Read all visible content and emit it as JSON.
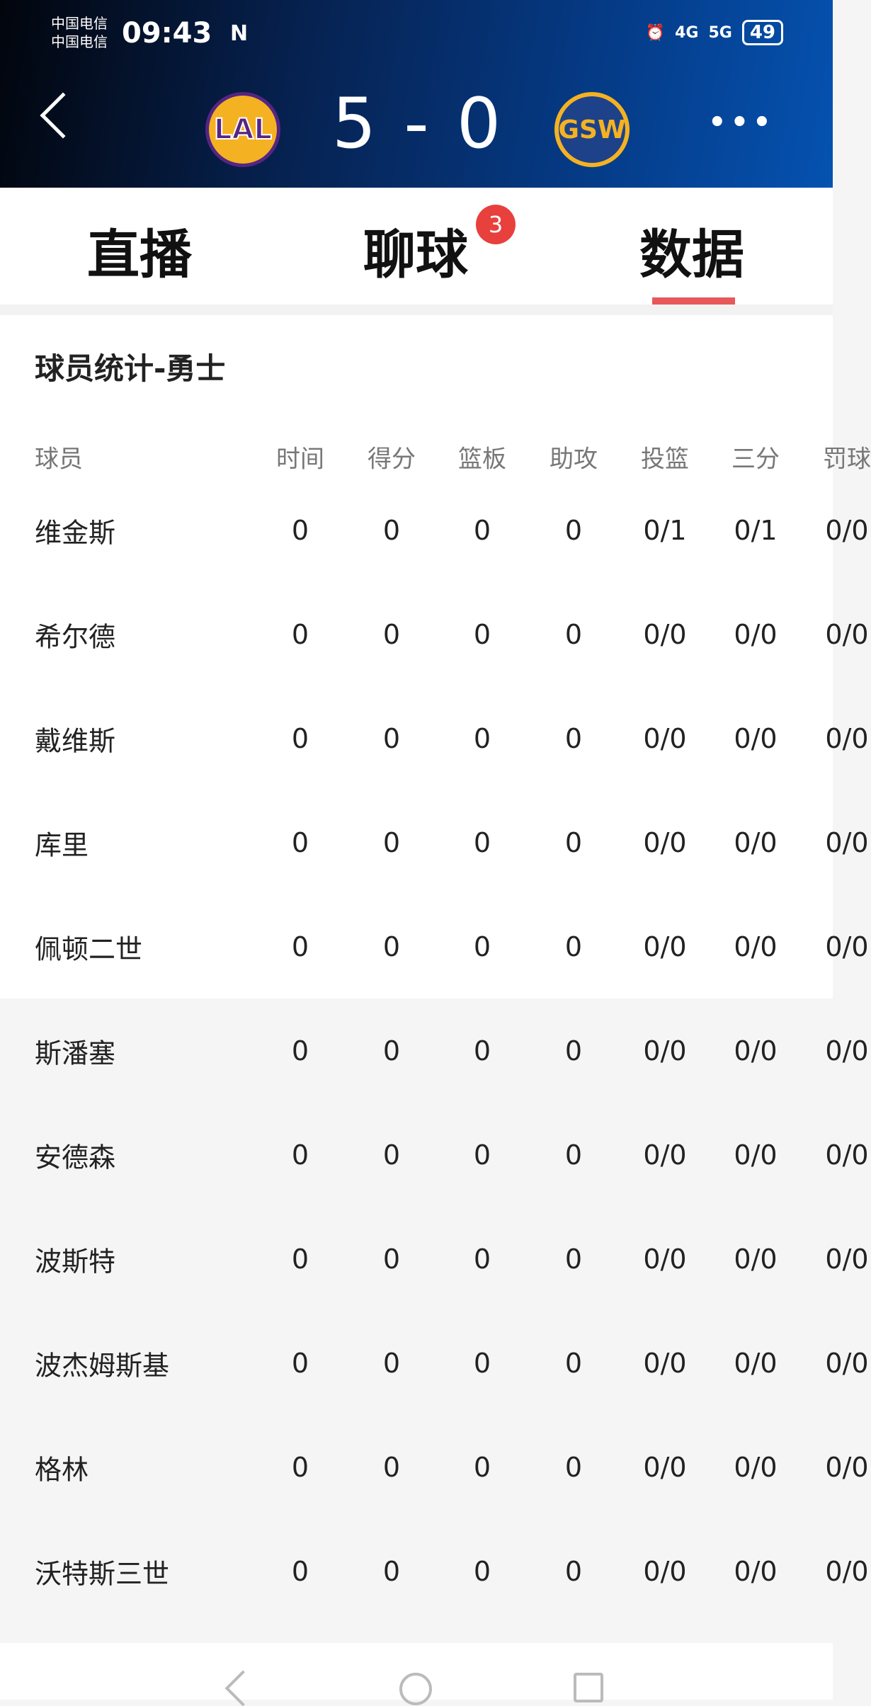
{
  "status_bar": {
    "carrier1": "中国电信",
    "carrier2": "中国电信",
    "time": "09:43",
    "nfc": "N",
    "net1": "4G",
    "net2": "5G",
    "battery": "49"
  },
  "header": {
    "home_team": "LAL",
    "away_team": "GSW",
    "score": "5 - 0",
    "home_color": "#552583",
    "away_color": "#1d428a"
  },
  "tabs": [
    {
      "label": "直播"
    },
    {
      "label": "聊球",
      "badge": "3"
    },
    {
      "label": "数据",
      "active": true
    }
  ],
  "section_title": "球员统计-勇士",
  "columns": [
    "球员",
    "时间",
    "得分",
    "篮板",
    "助攻",
    "投篮",
    "三分",
    "罚球"
  ],
  "players": [
    [
      "维金斯",
      "0",
      "0",
      "0",
      "0",
      "0/1",
      "0/1",
      "0/0"
    ],
    [
      "希尔德",
      "0",
      "0",
      "0",
      "0",
      "0/0",
      "0/0",
      "0/0"
    ],
    [
      "戴维斯",
      "0",
      "0",
      "0",
      "0",
      "0/0",
      "0/0",
      "0/0"
    ],
    [
      "库里",
      "0",
      "0",
      "0",
      "0",
      "0/0",
      "0/0",
      "0/0"
    ],
    [
      "佩顿二世",
      "0",
      "0",
      "0",
      "0",
      "0/0",
      "0/0",
      "0/0"
    ],
    [
      "斯潘塞",
      "0",
      "0",
      "0",
      "0",
      "0/0",
      "0/0",
      "0/0"
    ],
    [
      "安德森",
      "0",
      "0",
      "0",
      "0",
      "0/0",
      "0/0",
      "0/0"
    ],
    [
      "波斯特",
      "0",
      "0",
      "0",
      "0",
      "0/0",
      "0/0",
      "0/0"
    ],
    [
      "波杰姆斯基",
      "0",
      "0",
      "0",
      "0",
      "0/0",
      "0/0",
      "0/0"
    ],
    [
      "格林",
      "0",
      "0",
      "0",
      "0",
      "0/0",
      "0/0",
      "0/0"
    ],
    [
      "沃特斯三世",
      "0",
      "0",
      "0",
      "0",
      "0/0",
      "0/0",
      "0/0"
    ]
  ]
}
